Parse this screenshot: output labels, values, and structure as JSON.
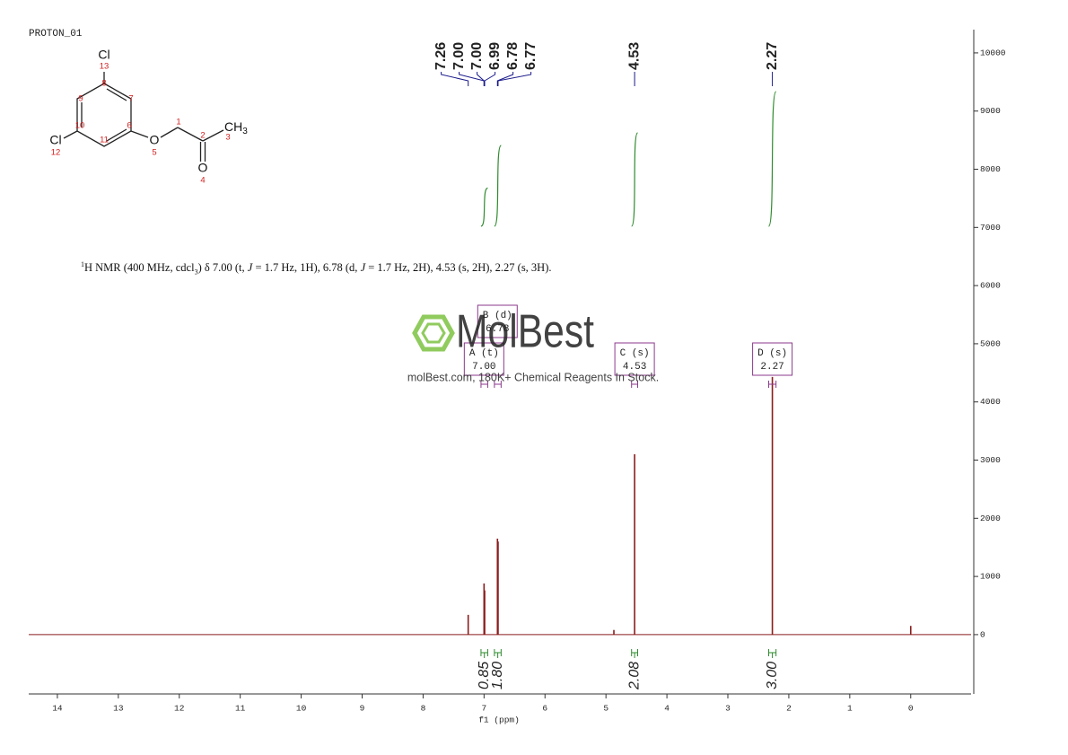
{
  "chart_data": {
    "type": "nmr",
    "title": "PROTON_01",
    "x_label": "f1 (ppm)",
    "xlim": [
      14.47,
      -0.99
    ],
    "xticks": [
      14,
      13,
      12,
      11,
      10,
      9,
      8,
      7,
      6,
      5,
      4,
      3,
      2,
      1,
      0
    ],
    "ylim": [
      -1020,
      10400
    ],
    "yticks": [
      0,
      1000,
      2000,
      3000,
      4000,
      5000,
      6000,
      7000,
      8000,
      9000,
      10000
    ],
    "color": "#8b1c1c",
    "x": [
      7.26,
      7.0,
      6.99,
      6.78,
      6.77,
      4.87,
      4.53,
      2.27,
      0
    ],
    "values": [
      340,
      880,
      760,
      1650,
      1600,
      80,
      3100,
      4430,
      150
    ],
    "peak_labels": [
      7.26,
      {
        "value": 7.0,
        "label": "7.00"
      },
      {
        "value": 7.0,
        "label": "7.00"
      },
      6.99,
      6.78,
      6.77,
      4.53,
      2.27
    ],
    "peak_label_color": "#1a1a8c",
    "integrals": [
      {
        "range": [
          7.05,
          6.94
        ],
        "value": 0.85
      },
      {
        "range": [
          6.83,
          6.72
        ],
        "value": 1.8,
        "label": "1.80"
      },
      {
        "range": [
          4.58,
          4.48
        ],
        "value": 2.08
      },
      {
        "range": [
          2.33,
          2.21
        ],
        "value": 3.0,
        "label": "3.00"
      }
    ],
    "integral_color": "#2e8b2e",
    "multiplets": [
      {
        "name": "A (t)",
        "shift": {
          "value": 7.0,
          "label": "7.00"
        },
        "range": [
          7.05,
          6.94
        ]
      },
      {
        "name": "B (d)",
        "shift": 6.78,
        "range": [
          6.83,
          6.72
        ]
      },
      {
        "name": "C (s)",
        "shift": 4.53,
        "range": [
          4.58,
          4.48
        ]
      },
      {
        "name": "D (s)",
        "shift": 2.27,
        "range": [
          2.33,
          2.21
        ]
      }
    ],
    "multiplet_color": "#8b3a8b",
    "description": [
      {
        "text": "1",
        "style": "sup"
      },
      {
        "text": "H NMR (400 MHz, cdcl",
        "style": "normal"
      },
      {
        "text": "3",
        "style": "sub"
      },
      {
        "text": ") δ 7.00 (t, ",
        "style": "normal"
      },
      {
        "text": "J",
        "style": "italic"
      },
      {
        "text": " = 1.7 Hz, 1H), 6.78 (d, ",
        "style": "normal"
      },
      {
        "text": "J",
        "style": "italic"
      },
      {
        "text": " = 1.7 Hz, 2H), 4.53 (s, 2H), 2.27 (s, 3H).",
        "style": "normal"
      }
    ],
    "structure": {
      "atoms": [
        {
          "symbol": "Cl",
          "number": "13"
        },
        {
          "symbol": "Cl",
          "number": "12"
        },
        {
          "symbol": "O",
          "number": "5"
        },
        {
          "symbol": "O",
          "number": "4"
        },
        {
          "symbol": "CH",
          "sub": "3",
          "number": "3"
        }
      ],
      "carbon_numbers": [
        "8",
        "7",
        "6",
        "11",
        "10",
        "9",
        "1",
        "2"
      ]
    },
    "watermark": {
      "brand": "MolBest",
      "tagline": "molBest.com, 180K+ Chemical Reagents In Stock."
    }
  }
}
